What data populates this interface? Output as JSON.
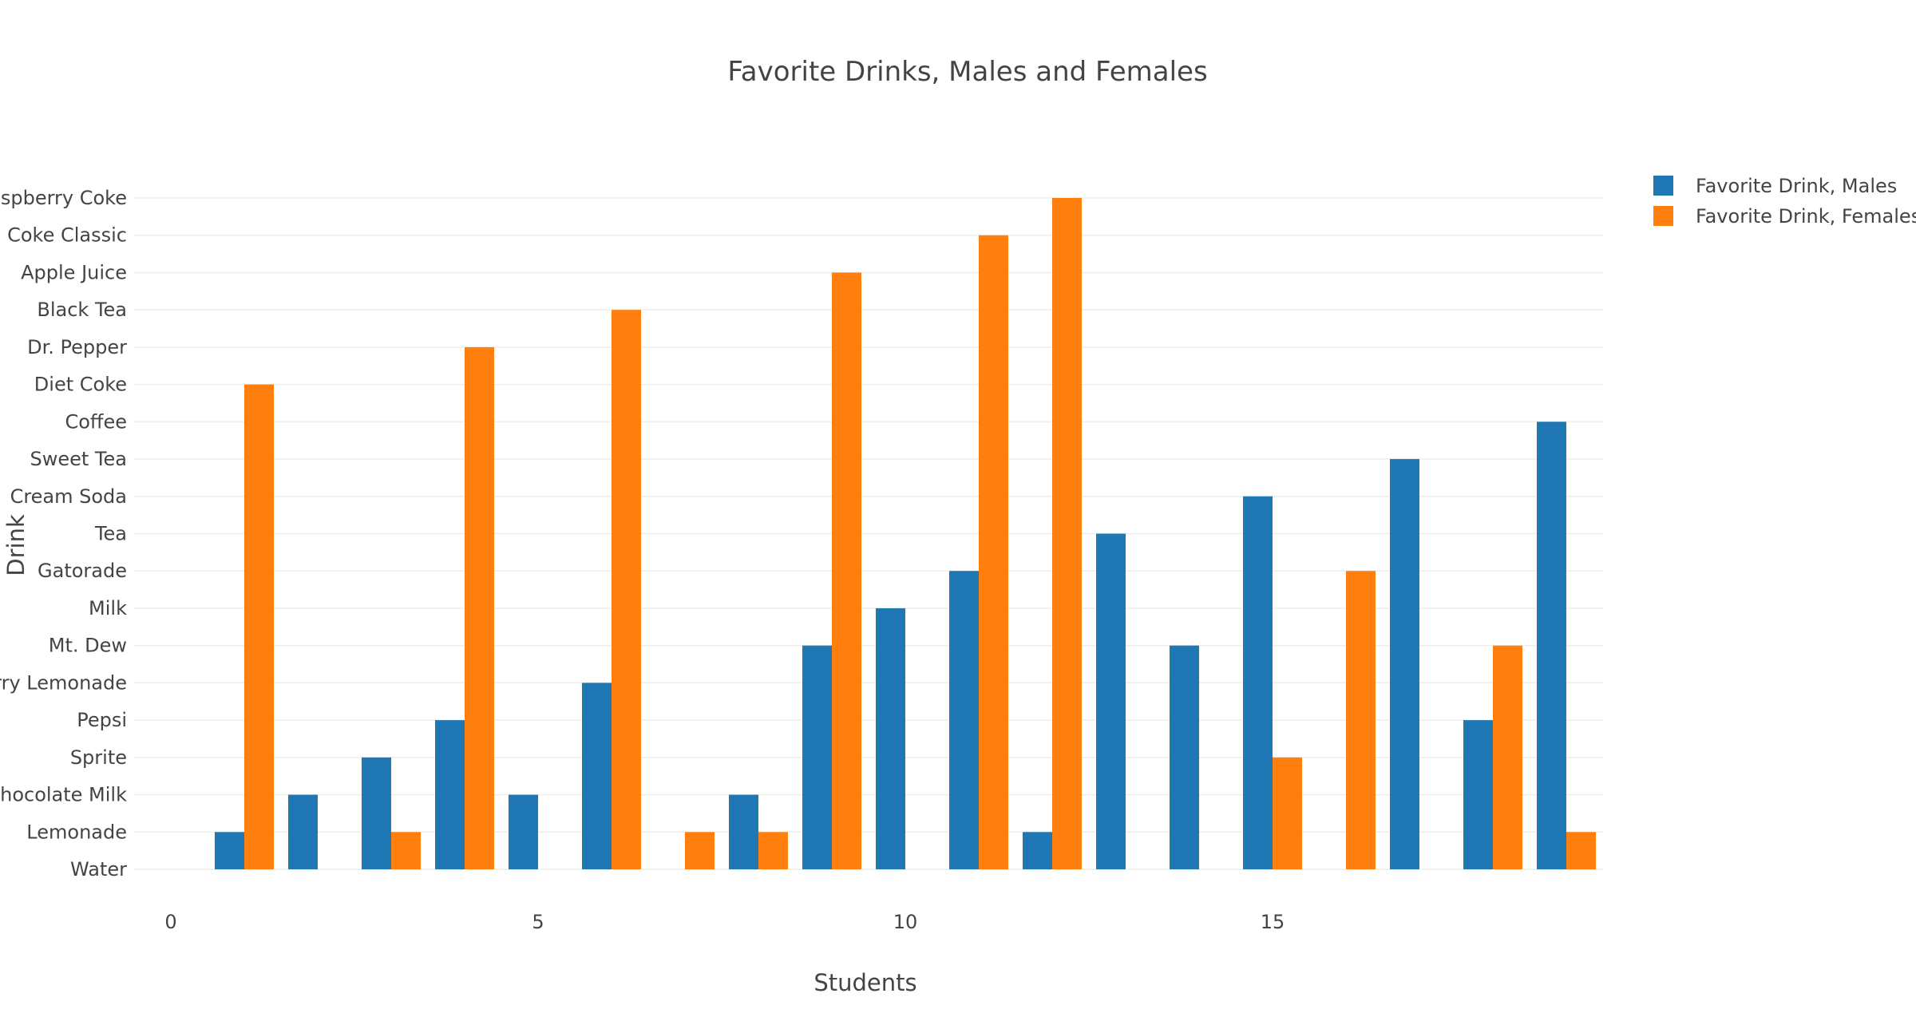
{
  "chart_data": {
    "type": "bar",
    "orientation": "vertical",
    "title": "Favorite Drinks, Males and Females",
    "xlabel": "Students",
    "ylabel": "Drink",
    "x_ticks": [
      0,
      5,
      10,
      15
    ],
    "x_range": [
      -0.5,
      19.5
    ],
    "y_categories": [
      "Water",
      "Lemonade",
      "Chocolate Milk",
      "Sprite",
      "Pepsi",
      "Strawberry Lemonade",
      "Mt. Dew",
      "Milk",
      "Gatorade",
      "Tea",
      "Cream Soda",
      "Sweet Tea",
      "Coffee",
      "Diet Coke",
      "Dr. Pepper",
      "Black Tea",
      "Apple Juice",
      "Coke Classic",
      "Raspberry Coke"
    ],
    "x": [
      0,
      1,
      2,
      3,
      4,
      5,
      6,
      7,
      8,
      9,
      10,
      11,
      12,
      13,
      14,
      15,
      16,
      17,
      18,
      19
    ],
    "series": [
      {
        "name": "Favorite Drink, Males",
        "color": "#1f77b4",
        "values": [
          "Water",
          "Lemonade",
          "Chocolate Milk",
          "Sprite",
          "Pepsi",
          "Chocolate Milk",
          "Strawberry Lemonade",
          "Water",
          "Chocolate Milk",
          "Mt. Dew",
          "Milk",
          "Gatorade",
          "Lemonade",
          "Tea",
          "Mt. Dew",
          "Cream Soda",
          "Water",
          "Sweet Tea",
          "Pepsi",
          "Coffee"
        ]
      },
      {
        "name": "Favorite Drink, Females",
        "color": "#ff7f0e",
        "values": [
          "Water",
          "Diet Coke",
          "Water",
          "Lemonade",
          "Dr. Pepper",
          "Water",
          "Black Tea",
          "Lemonade",
          "Lemonade",
          "Apple Juice",
          "Water",
          "Coke Classic",
          "Raspberry Coke",
          "Water",
          "Water",
          "Sprite",
          "Gatorade",
          "Water",
          "Mt. Dew",
          "Lemonade"
        ]
      }
    ],
    "grid": true,
    "legend_position": "top-right"
  }
}
